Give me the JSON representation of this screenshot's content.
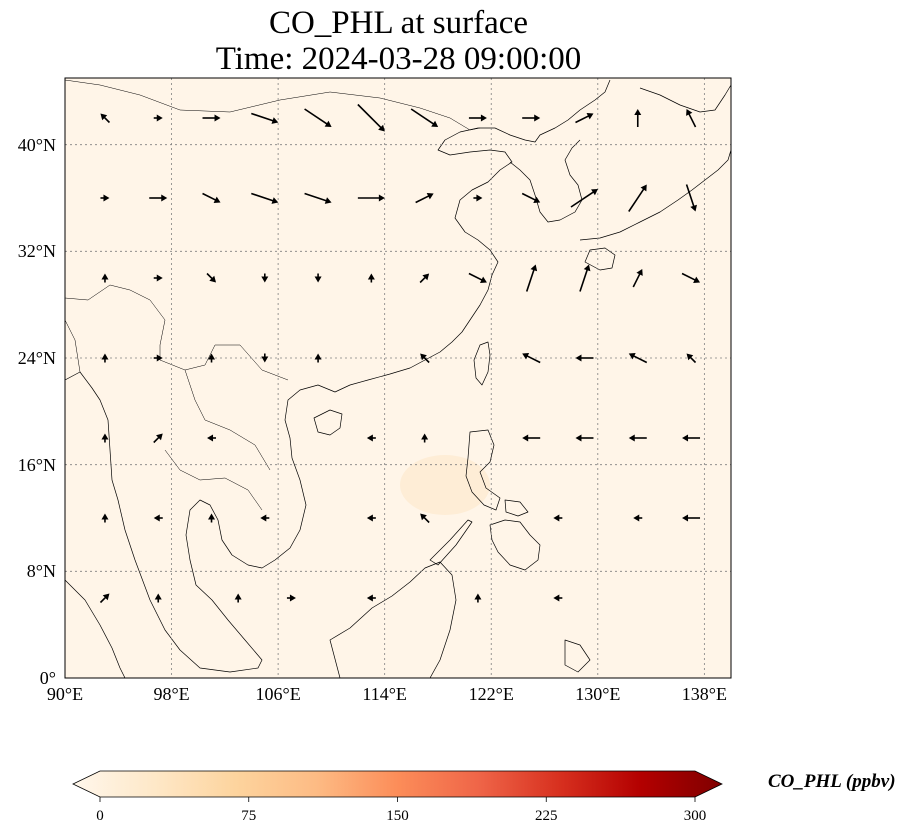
{
  "title": {
    "line1": "CO_PHL at surface",
    "line2": "Time: 2024-03-28 09:00:00"
  },
  "map": {
    "extent_lon": [
      90,
      140
    ],
    "extent_lat": [
      0,
      45
    ],
    "lat_ticks": [
      {
        "value": 0,
        "label": "0°"
      },
      {
        "value": 8,
        "label": "8°N"
      },
      {
        "value": 16,
        "label": "16°N"
      },
      {
        "value": 24,
        "label": "24°N"
      },
      {
        "value": 32,
        "label": "32°N"
      },
      {
        "value": 40,
        "label": "40°N"
      }
    ],
    "lon_ticks": [
      {
        "value": 90,
        "label": "90°E"
      },
      {
        "value": 98,
        "label": "98°E"
      },
      {
        "value": 106,
        "label": "106°E"
      },
      {
        "value": 114,
        "label": "114°E"
      },
      {
        "value": 122,
        "label": "122°E"
      },
      {
        "value": 130,
        "label": "130°E"
      },
      {
        "value": 138,
        "label": "138°E"
      }
    ],
    "background_color": "#fff5e8",
    "gridline_color": "#808080",
    "coastline_color": "#000000"
  },
  "colorbar": {
    "label": "CO_PHL (ppbv)",
    "min": 0,
    "max": 300,
    "ticks": [
      0,
      75,
      150,
      225,
      300
    ],
    "colormap": "OrRd",
    "colors": [
      "#fff7ec",
      "#fee8c8",
      "#fdd49e",
      "#fdbb84",
      "#fc8d59",
      "#ef6548",
      "#d7301f",
      "#b30000",
      "#7f0000"
    ],
    "extend": "both"
  },
  "chart_data": {
    "type": "heatmap",
    "variable": "CO_PHL",
    "units": "ppbv",
    "level": "surface",
    "time": "2024-03-28 09:00:00",
    "field_note_value_range": [
      0,
      15
    ],
    "wind_vectors": [
      {
        "lon": 93,
        "lat": 42,
        "u": -1,
        "v": 1
      },
      {
        "lon": 97,
        "lat": 42,
        "u": 1,
        "v": 0
      },
      {
        "lon": 101,
        "lat": 42,
        "u": 2,
        "v": 0
      },
      {
        "lon": 105,
        "lat": 42,
        "u": 3,
        "v": -1
      },
      {
        "lon": 109,
        "lat": 42,
        "u": 3,
        "v": -2
      },
      {
        "lon": 113,
        "lat": 42,
        "u": 3,
        "v": -3
      },
      {
        "lon": 117,
        "lat": 42,
        "u": 3,
        "v": -2
      },
      {
        "lon": 121,
        "lat": 42,
        "u": 2,
        "v": 0
      },
      {
        "lon": 125,
        "lat": 42,
        "u": 2,
        "v": 0
      },
      {
        "lon": 129,
        "lat": 42,
        "u": 2,
        "v": 1
      },
      {
        "lon": 133,
        "lat": 42,
        "u": 0,
        "v": 2
      },
      {
        "lon": 137,
        "lat": 42,
        "u": -1,
        "v": 2
      },
      {
        "lon": 93,
        "lat": 36,
        "u": 1,
        "v": 0
      },
      {
        "lon": 97,
        "lat": 36,
        "u": 2,
        "v": 0
      },
      {
        "lon": 101,
        "lat": 36,
        "u": 2,
        "v": -1
      },
      {
        "lon": 105,
        "lat": 36,
        "u": 3,
        "v": -1
      },
      {
        "lon": 109,
        "lat": 36,
        "u": 3,
        "v": -1
      },
      {
        "lon": 113,
        "lat": 36,
        "u": 3,
        "v": 0
      },
      {
        "lon": 117,
        "lat": 36,
        "u": 2,
        "v": 1
      },
      {
        "lon": 121,
        "lat": 36,
        "u": 1,
        "v": 0
      },
      {
        "lon": 125,
        "lat": 36,
        "u": 2,
        "v": -1
      },
      {
        "lon": 129,
        "lat": 36,
        "u": 3,
        "v": 2
      },
      {
        "lon": 133,
        "lat": 36,
        "u": 2,
        "v": 3
      },
      {
        "lon": 137,
        "lat": 36,
        "u": 1,
        "v": -3
      },
      {
        "lon": 93,
        "lat": 30,
        "u": 0,
        "v": 1
      },
      {
        "lon": 97,
        "lat": 30,
        "u": 1,
        "v": 0
      },
      {
        "lon": 101,
        "lat": 30,
        "u": 1,
        "v": -1
      },
      {
        "lon": 105,
        "lat": 30,
        "u": 0,
        "v": -1
      },
      {
        "lon": 109,
        "lat": 30,
        "u": 0,
        "v": -1
      },
      {
        "lon": 113,
        "lat": 30,
        "u": 0,
        "v": 1
      },
      {
        "lon": 117,
        "lat": 30,
        "u": 1,
        "v": 1
      },
      {
        "lon": 121,
        "lat": 30,
        "u": 2,
        "v": -1
      },
      {
        "lon": 125,
        "lat": 30,
        "u": 1,
        "v": 3
      },
      {
        "lon": 129,
        "lat": 30,
        "u": 1,
        "v": 3
      },
      {
        "lon": 133,
        "lat": 30,
        "u": 1,
        "v": 2
      },
      {
        "lon": 137,
        "lat": 30,
        "u": 2,
        "v": -1
      },
      {
        "lon": 93,
        "lat": 24,
        "u": 0,
        "v": 1
      },
      {
        "lon": 97,
        "lat": 24,
        "u": 1,
        "v": 0
      },
      {
        "lon": 101,
        "lat": 24,
        "u": 0,
        "v": 1
      },
      {
        "lon": 105,
        "lat": 24,
        "u": 0,
        "v": -1
      },
      {
        "lon": 109,
        "lat": 24,
        "u": 0,
        "v": 1
      },
      {
        "lon": 117,
        "lat": 24,
        "u": -1,
        "v": 1
      },
      {
        "lon": 125,
        "lat": 24,
        "u": -2,
        "v": 1
      },
      {
        "lon": 129,
        "lat": 24,
        "u": -2,
        "v": 0
      },
      {
        "lon": 133,
        "lat": 24,
        "u": -2,
        "v": 1
      },
      {
        "lon": 137,
        "lat": 24,
        "u": -1,
        "v": 1
      },
      {
        "lon": 93,
        "lat": 18,
        "u": 0,
        "v": 1
      },
      {
        "lon": 97,
        "lat": 18,
        "u": 1,
        "v": 1
      },
      {
        "lon": 101,
        "lat": 18,
        "u": -1,
        "v": 0
      },
      {
        "lon": 113,
        "lat": 18,
        "u": -1,
        "v": 0
      },
      {
        "lon": 117,
        "lat": 18,
        "u": 0,
        "v": 1
      },
      {
        "lon": 125,
        "lat": 18,
        "u": -2,
        "v": 0
      },
      {
        "lon": 129,
        "lat": 18,
        "u": -2,
        "v": 0
      },
      {
        "lon": 133,
        "lat": 18,
        "u": -2,
        "v": 0
      },
      {
        "lon": 137,
        "lat": 18,
        "u": -2,
        "v": 0
      },
      {
        "lon": 93,
        "lat": 12,
        "u": 0,
        "v": 1
      },
      {
        "lon": 97,
        "lat": 12,
        "u": -1,
        "v": 0
      },
      {
        "lon": 101,
        "lat": 12,
        "u": 0,
        "v": 1
      },
      {
        "lon": 105,
        "lat": 12,
        "u": -1,
        "v": 0
      },
      {
        "lon": 113,
        "lat": 12,
        "u": -1,
        "v": 0
      },
      {
        "lon": 117,
        "lat": 12,
        "u": -1,
        "v": 1
      },
      {
        "lon": 127,
        "lat": 12,
        "u": -1,
        "v": 0
      },
      {
        "lon": 133,
        "lat": 12,
        "u": -1,
        "v": 0
      },
      {
        "lon": 137,
        "lat": 12,
        "u": -2,
        "v": 0
      },
      {
        "lon": 93,
        "lat": 6,
        "u": 1,
        "v": 1
      },
      {
        "lon": 97,
        "lat": 6,
        "u": 0,
        "v": 1
      },
      {
        "lon": 103,
        "lat": 6,
        "u": 0,
        "v": 1
      },
      {
        "lon": 107,
        "lat": 6,
        "u": 1,
        "v": 0
      },
      {
        "lon": 113,
        "lat": 6,
        "u": -1,
        "v": 0
      },
      {
        "lon": 121,
        "lat": 6,
        "u": 0,
        "v": 1
      },
      {
        "lon": 127,
        "lat": 6,
        "u": -1,
        "v": 0
      }
    ]
  }
}
